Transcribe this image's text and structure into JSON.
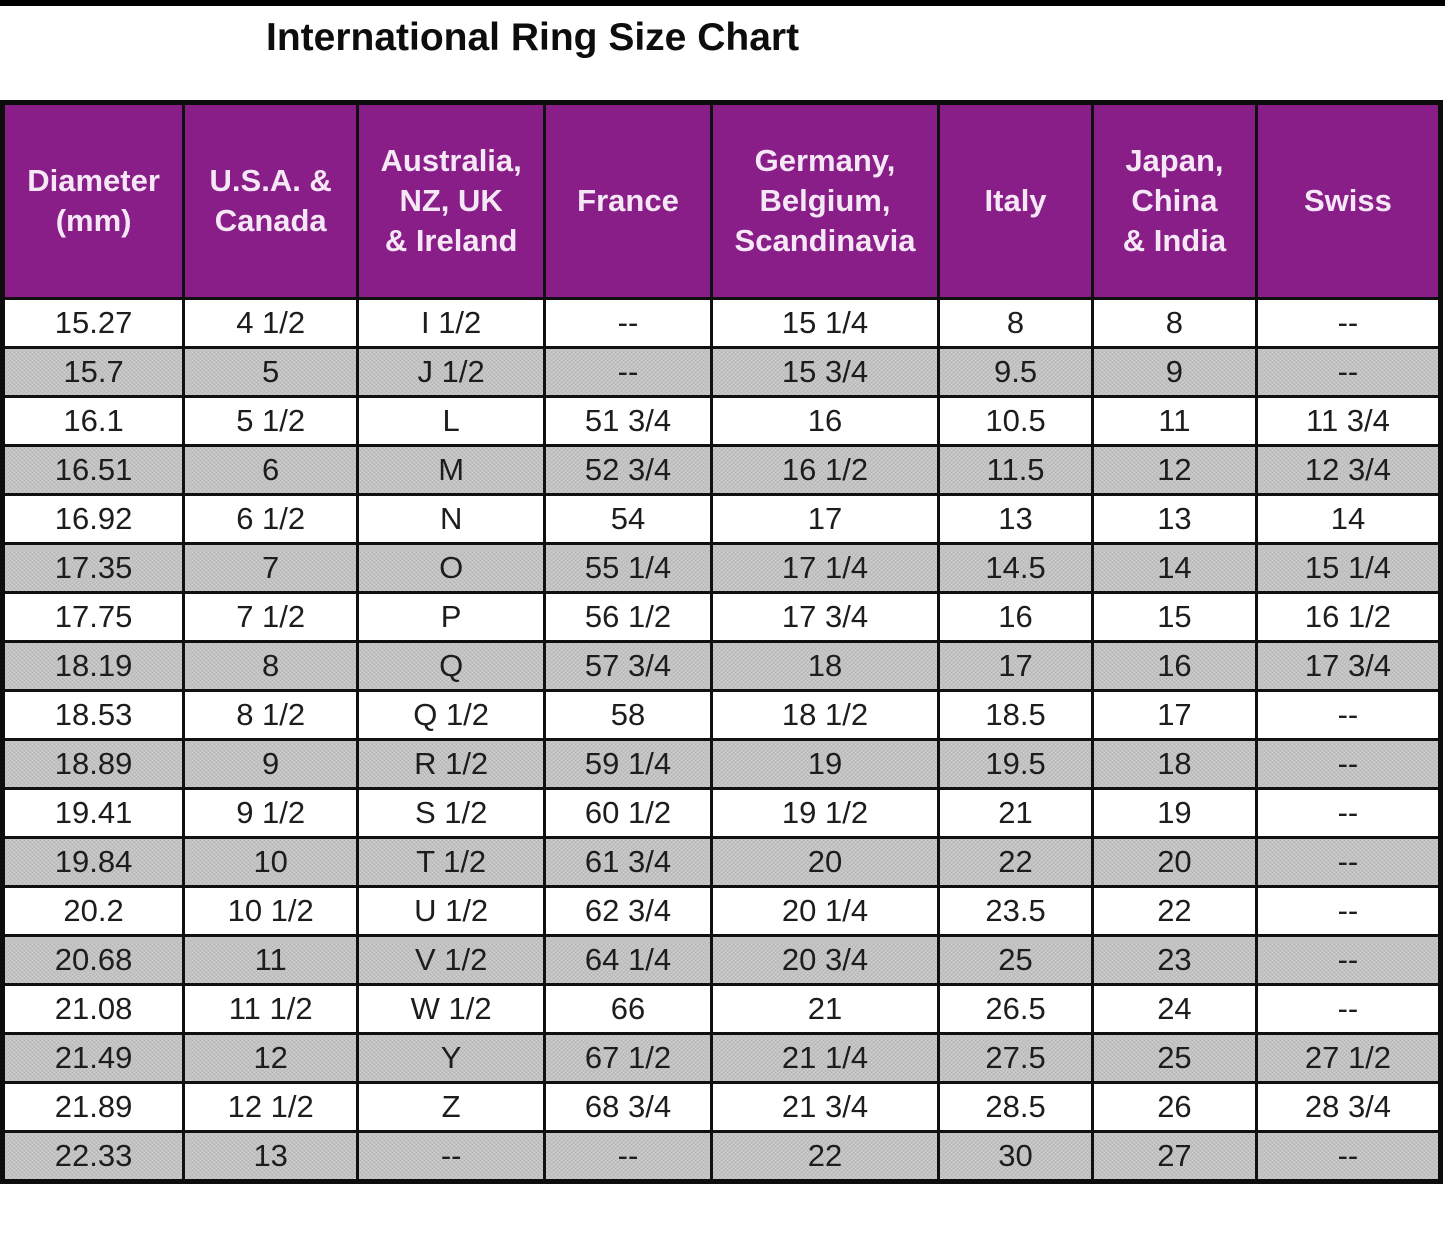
{
  "page": {
    "title": "International Ring Size Chart"
  },
  "colors": {
    "header_bg": "#8E208C",
    "header_text": "#F6E7F6",
    "row_alt_bg": "#CECECE",
    "row_bg": "#FFFFFF",
    "border": "#101010",
    "title_text": "#0D0D0D"
  },
  "chart_data": {
    "type": "table",
    "title": "International Ring Size Chart",
    "columns": [
      "Diameter\n(mm)",
      "U.S.A. &\nCanada",
      "Australia,\nNZ, UK\n& Ireland",
      "France",
      "Germany,\nBelgium,\nScandinavia",
      "Italy",
      "Japan,\nChina\n& India",
      "Swiss"
    ],
    "rows": [
      [
        "15.27",
        "4 1/2",
        "I 1/2",
        "--",
        "15 1/4",
        "8",
        "8",
        "--"
      ],
      [
        "15.7",
        "5",
        "J 1/2",
        "--",
        "15 3/4",
        "9.5",
        "9",
        "--"
      ],
      [
        "16.1",
        "5 1/2",
        "L",
        "51 3/4",
        "16",
        "10.5",
        "11",
        "11 3/4"
      ],
      [
        "16.51",
        "6",
        "M",
        "52 3/4",
        "16 1/2",
        "11.5",
        "12",
        "12 3/4"
      ],
      [
        "16.92",
        "6 1/2",
        "N",
        "54",
        "17",
        "13",
        "13",
        "14"
      ],
      [
        "17.35",
        "7",
        "O",
        "55 1/4",
        "17 1/4",
        "14.5",
        "14",
        "15 1/4"
      ],
      [
        "17.75",
        "7 1/2",
        "P",
        "56 1/2",
        "17 3/4",
        "16",
        "15",
        "16 1/2"
      ],
      [
        "18.19",
        "8",
        "Q",
        "57 3/4",
        "18",
        "17",
        "16",
        "17 3/4"
      ],
      [
        "18.53",
        "8 1/2",
        "Q 1/2",
        "58",
        "18 1/2",
        "18.5",
        "17",
        "--"
      ],
      [
        "18.89",
        "9",
        "R 1/2",
        "59 1/4",
        "19",
        "19.5",
        "18",
        "--"
      ],
      [
        "19.41",
        "9 1/2",
        "S 1/2",
        "60 1/2",
        "19 1/2",
        "21",
        "19",
        "--"
      ],
      [
        "19.84",
        "10",
        "T 1/2",
        "61 3/4",
        "20",
        "22",
        "20",
        "--"
      ],
      [
        "20.2",
        "10 1/2",
        "U 1/2",
        "62 3/4",
        "20 1/4",
        "23.5",
        "22",
        "--"
      ],
      [
        "20.68",
        "11",
        "V 1/2",
        "64 1/4",
        "20 3/4",
        "25",
        "23",
        "--"
      ],
      [
        "21.08",
        "11 1/2",
        "W 1/2",
        "66",
        "21",
        "26.5",
        "24",
        "--"
      ],
      [
        "21.49",
        "12",
        "Y",
        "67 1/2",
        "21 1/4",
        "27.5",
        "25",
        "27 1/2"
      ],
      [
        "21.89",
        "12 1/2",
        "Z",
        "68 3/4",
        "21 3/4",
        "28.5",
        "26",
        "28 3/4"
      ],
      [
        "22.33",
        "13",
        "--",
        "--",
        "22",
        "30",
        "27",
        "--"
      ]
    ]
  }
}
